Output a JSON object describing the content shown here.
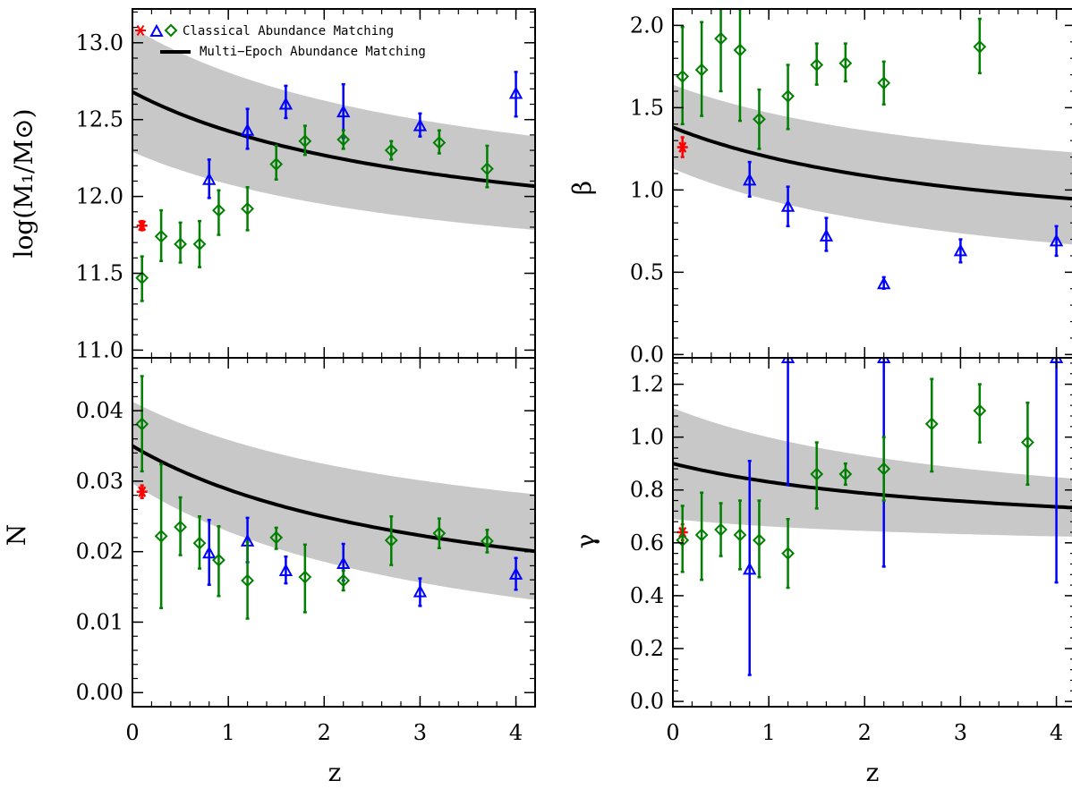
{
  "legend": {
    "classical": "Classical Abundance Matching",
    "multi_epoch": "Multi−Epoch Abundance Matching"
  },
  "colors": {
    "red": "#ff0000",
    "blue": "#0000ff",
    "green": "#007f00",
    "band": "#c8c8c8",
    "curve": "#000000"
  },
  "chart_data": [
    {
      "id": "M1",
      "type": "scatter",
      "ylabel": "log(M₁/M⊙)",
      "xlabel": "",
      "xlim": [
        0,
        4.2
      ],
      "ylim": [
        10.95,
        13.22
      ],
      "yticks": [
        11.0,
        11.5,
        12.0,
        12.5,
        13.0
      ],
      "ytick_labels": [
        "11.0",
        "11.5",
        "12.0",
        "12.5",
        "13.0"
      ],
      "xticks": [
        0,
        1,
        2,
        3,
        4
      ],
      "curve": {
        "a": 11.58,
        "b": 1.1,
        "c": 0.3
      },
      "band": {
        "lo_a": 11.38,
        "lo_b": 0.91,
        "lo_c": 0.3,
        "hi_a": 11.83,
        "hi_b": 1.27,
        "hi_c": 0.3
      },
      "series": [
        {
          "marker": "star",
          "color": "red",
          "points": [
            {
              "x": 0.1,
              "y": 11.81,
              "lo": 11.78,
              "hi": 11.84
            }
          ]
        },
        {
          "marker": "triangle",
          "color": "blue",
          "points": [
            {
              "x": 0.8,
              "y": 12.11,
              "lo": 11.99,
              "hi": 12.24
            },
            {
              "x": 1.2,
              "y": 12.43,
              "lo": 12.31,
              "hi": 12.57
            },
            {
              "x": 1.6,
              "y": 12.6,
              "lo": 12.51,
              "hi": 12.72
            },
            {
              "x": 2.2,
              "y": 12.55,
              "lo": 12.38,
              "hi": 12.73
            },
            {
              "x": 3.0,
              "y": 12.46,
              "lo": 12.39,
              "hi": 12.54
            },
            {
              "x": 4.0,
              "y": 12.67,
              "lo": 12.52,
              "hi": 12.81
            }
          ]
        },
        {
          "marker": "diamond",
          "color": "green",
          "points": [
            {
              "x": 0.1,
              "y": 11.47,
              "lo": 11.32,
              "hi": 11.61
            },
            {
              "x": 0.3,
              "y": 11.74,
              "lo": 11.58,
              "hi": 11.91
            },
            {
              "x": 0.5,
              "y": 11.69,
              "lo": 11.57,
              "hi": 11.83
            },
            {
              "x": 0.7,
              "y": 11.69,
              "lo": 11.54,
              "hi": 11.84
            },
            {
              "x": 0.9,
              "y": 11.91,
              "lo": 11.75,
              "hi": 12.04
            },
            {
              "x": 1.2,
              "y": 11.92,
              "lo": 11.78,
              "hi": 12.06
            },
            {
              "x": 1.5,
              "y": 12.21,
              "lo": 12.11,
              "hi": 12.33
            },
            {
              "x": 1.8,
              "y": 12.36,
              "lo": 12.27,
              "hi": 12.46
            },
            {
              "x": 2.2,
              "y": 12.37,
              "lo": 12.31,
              "hi": 12.43
            },
            {
              "x": 2.7,
              "y": 12.3,
              "lo": 12.24,
              "hi": 12.36
            },
            {
              "x": 3.2,
              "y": 12.35,
              "lo": 12.28,
              "hi": 12.43
            },
            {
              "x": 3.7,
              "y": 12.18,
              "lo": 12.06,
              "hi": 12.33
            }
          ]
        }
      ]
    },
    {
      "id": "beta",
      "type": "scatter",
      "ylabel": "β",
      "xlabel": "",
      "xlim": [
        0,
        4.2
      ],
      "ylim": [
        -0.02,
        2.1
      ],
      "yticks": [
        0.0,
        0.5,
        1.0,
        1.5,
        2.0
      ],
      "ytick_labels": [
        "0.0",
        "0.5",
        "1.0",
        "1.5",
        "2.0"
      ],
      "xticks": [
        0,
        1,
        2,
        3,
        4
      ],
      "curve": {
        "a": 0.6,
        "b": 0.78,
        "c": 0.3
      },
      "band": {
        "lo_a": 0.3,
        "lo_b": 0.83,
        "lo_c": 0.3,
        "hi_a": 0.9,
        "hi_b": 0.74,
        "hi_c": 0.3
      },
      "series": [
        {
          "marker": "star",
          "color": "red",
          "points": [
            {
              "x": 0.1,
              "y": 1.26,
              "lo": 1.2,
              "hi": 1.32
            }
          ]
        },
        {
          "marker": "triangle",
          "color": "blue",
          "points": [
            {
              "x": 0.8,
              "y": 1.06,
              "lo": 0.96,
              "hi": 1.17
            },
            {
              "x": 1.2,
              "y": 0.9,
              "lo": 0.78,
              "hi": 1.02
            },
            {
              "x": 1.6,
              "y": 0.72,
              "lo": 0.63,
              "hi": 0.83
            },
            {
              "x": 2.2,
              "y": 0.43,
              "lo": 0.4,
              "hi": 0.47
            },
            {
              "x": 3.0,
              "y": 0.63,
              "lo": 0.56,
              "hi": 0.7
            },
            {
              "x": 4.0,
              "y": 0.69,
              "lo": 0.6,
              "hi": 0.78
            }
          ]
        },
        {
          "marker": "diamond",
          "color": "green",
          "points": [
            {
              "x": 0.1,
              "y": 1.69,
              "lo": 1.4,
              "hi": 1.99
            },
            {
              "x": 0.3,
              "y": 1.73,
              "lo": 1.45,
              "hi": 2.02
            },
            {
              "x": 0.5,
              "y": 1.92,
              "lo": 1.6,
              "hi": 2.1
            },
            {
              "x": 0.7,
              "y": 1.85,
              "lo": 1.42,
              "hi": 2.1
            },
            {
              "x": 0.9,
              "y": 1.43,
              "lo": 1.25,
              "hi": 1.61
            },
            {
              "x": 1.2,
              "y": 1.57,
              "lo": 1.37,
              "hi": 1.76
            },
            {
              "x": 1.5,
              "y": 1.76,
              "lo": 1.64,
              "hi": 1.89
            },
            {
              "x": 1.8,
              "y": 1.77,
              "lo": 1.66,
              "hi": 1.89
            },
            {
              "x": 2.2,
              "y": 1.65,
              "lo": 1.52,
              "hi": 1.78
            },
            {
              "x": 3.2,
              "y": 1.87,
              "lo": 1.71,
              "hi": 2.04
            }
          ]
        }
      ]
    },
    {
      "id": "N",
      "type": "scatter",
      "ylabel": "N",
      "xlabel": "z",
      "xlim": [
        0,
        4.2
      ],
      "ylim": [
        -0.002,
        0.0475
      ],
      "yticks": [
        0.0,
        0.01,
        0.02,
        0.03,
        0.04
      ],
      "ytick_labels": [
        "0.00",
        "0.01",
        "0.02",
        "0.03",
        "0.04"
      ],
      "xticks": [
        0,
        1,
        2,
        3,
        4
      ],
      "xtick_labels": [
        "0",
        "1",
        "2",
        "3",
        "4"
      ],
      "curve": {
        "a": 0.0082,
        "b": 0.0268,
        "c": 0.3
      },
      "band": {
        "lo_a": 0.0,
        "lo_b": 0.0297,
        "lo_c": 0.3,
        "hi_a": 0.0177,
        "hi_b": 0.0236,
        "hi_c": 0.3
      },
      "series": [
        {
          "marker": "star",
          "color": "red",
          "points": [
            {
              "x": 0.1,
              "y": 0.0285,
              "lo": 0.0276,
              "hi": 0.0294
            }
          ]
        },
        {
          "marker": "triangle",
          "color": "blue",
          "points": [
            {
              "x": 0.8,
              "y": 0.0198,
              "lo": 0.0153,
              "hi": 0.0245
            },
            {
              "x": 1.2,
              "y": 0.0215,
              "lo": 0.0185,
              "hi": 0.0248
            },
            {
              "x": 1.6,
              "y": 0.0173,
              "lo": 0.0155,
              "hi": 0.0193
            },
            {
              "x": 2.2,
              "y": 0.0183,
              "lo": 0.0159,
              "hi": 0.0211
            },
            {
              "x": 3.0,
              "y": 0.0143,
              "lo": 0.0123,
              "hi": 0.0162
            },
            {
              "x": 4.0,
              "y": 0.0168,
              "lo": 0.0146,
              "hi": 0.0191
            }
          ]
        },
        {
          "marker": "diamond",
          "color": "green",
          "points": [
            {
              "x": 0.1,
              "y": 0.0381,
              "lo": 0.0314,
              "hi": 0.0449
            },
            {
              "x": 0.3,
              "y": 0.0222,
              "lo": 0.012,
              "hi": 0.0324
            },
            {
              "x": 0.5,
              "y": 0.0235,
              "lo": 0.0195,
              "hi": 0.0277
            },
            {
              "x": 0.7,
              "y": 0.0212,
              "lo": 0.0176,
              "hi": 0.025
            },
            {
              "x": 0.9,
              "y": 0.0188,
              "lo": 0.0137,
              "hi": 0.0236
            },
            {
              "x": 1.2,
              "y": 0.0159,
              "lo": 0.0105,
              "hi": 0.0214
            },
            {
              "x": 1.5,
              "y": 0.022,
              "lo": 0.0204,
              "hi": 0.0234
            },
            {
              "x": 1.8,
              "y": 0.0164,
              "lo": 0.0114,
              "hi": 0.021
            },
            {
              "x": 2.2,
              "y": 0.0159,
              "lo": 0.0145,
              "hi": 0.0173
            },
            {
              "x": 2.7,
              "y": 0.0216,
              "lo": 0.0181,
              "hi": 0.025
            },
            {
              "x": 3.2,
              "y": 0.0226,
              "lo": 0.0205,
              "hi": 0.0247
            },
            {
              "x": 3.7,
              "y": 0.0215,
              "lo": 0.0199,
              "hi": 0.0231
            }
          ]
        }
      ]
    },
    {
      "id": "gamma",
      "type": "scatter",
      "ylabel": "γ",
      "xlabel": "z",
      "xlim": [
        0,
        4.2
      ],
      "ylim": [
        -0.02,
        1.3
      ],
      "yticks": [
        0.0,
        0.2,
        0.4,
        0.6,
        0.8,
        1.0,
        1.2
      ],
      "ytick_labels": [
        "0.0",
        "0.2",
        "0.4",
        "0.6",
        "0.8",
        "1.0",
        "1.2"
      ],
      "xticks": [
        0,
        1,
        2,
        3,
        4
      ],
      "xtick_labels": [
        "0",
        "1",
        "2",
        "3",
        "4"
      ],
      "curve": {
        "a": 0.6,
        "b": 0.3,
        "c": 0.3
      },
      "band": {
        "lo_a": 0.57,
        "lo_b": 0.12,
        "lo_c": 0.3,
        "hi_a": 0.63,
        "hi_b": 0.48,
        "hi_c": 0.3
      },
      "series": [
        {
          "marker": "star",
          "color": "red",
          "points": [
            {
              "x": 0.1,
              "y": 0.64,
              "lo": 0.61,
              "hi": 0.67
            }
          ]
        },
        {
          "marker": "triangle",
          "color": "blue",
          "points": [
            {
              "x": 0.8,
              "y": 0.5,
              "lo": 0.1,
              "hi": 0.91
            },
            {
              "x": 1.2,
              "y": 1.3,
              "lo": 0.82,
              "hi": 1.3
            },
            {
              "x": 2.2,
              "y": 1.3,
              "lo": 0.51,
              "hi": 1.3
            },
            {
              "x": 4.0,
              "y": 1.3,
              "lo": 0.45,
              "hi": 1.3
            }
          ]
        },
        {
          "marker": "diamond",
          "color": "green",
          "points": [
            {
              "x": 0.1,
              "y": 0.61,
              "lo": 0.49,
              "hi": 0.74
            },
            {
              "x": 0.3,
              "y": 0.63,
              "lo": 0.46,
              "hi": 0.79
            },
            {
              "x": 0.5,
              "y": 0.65,
              "lo": 0.55,
              "hi": 0.75
            },
            {
              "x": 0.7,
              "y": 0.63,
              "lo": 0.5,
              "hi": 0.76
            },
            {
              "x": 0.9,
              "y": 0.61,
              "lo": 0.47,
              "hi": 0.76
            },
            {
              "x": 1.2,
              "y": 0.56,
              "lo": 0.43,
              "hi": 0.69
            },
            {
              "x": 1.5,
              "y": 0.86,
              "lo": 0.73,
              "hi": 0.98
            },
            {
              "x": 1.8,
              "y": 0.86,
              "lo": 0.82,
              "hi": 0.9
            },
            {
              "x": 2.2,
              "y": 0.88,
              "lo": 0.76,
              "hi": 1.0
            },
            {
              "x": 2.7,
              "y": 1.05,
              "lo": 0.87,
              "hi": 1.22
            },
            {
              "x": 3.2,
              "y": 1.1,
              "lo": 0.98,
              "hi": 1.2
            },
            {
              "x": 3.7,
              "y": 0.98,
              "lo": 0.82,
              "hi": 1.13
            }
          ]
        }
      ]
    }
  ]
}
